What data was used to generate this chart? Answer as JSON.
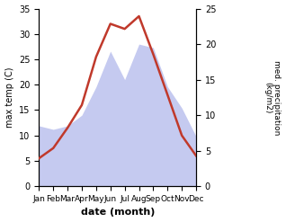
{
  "months": [
    "Jan",
    "Feb",
    "Mar",
    "Apr",
    "May",
    "Jun",
    "Jul",
    "Aug",
    "Sep",
    "Oct",
    "Nov",
    "Dec"
  ],
  "temp": [
    5.5,
    7.5,
    11.5,
    16.0,
    25.5,
    32.0,
    31.0,
    33.5,
    26.0,
    18.0,
    10.0,
    6.0
  ],
  "precip": [
    8.5,
    8.0,
    8.5,
    10.0,
    14.0,
    19.0,
    15.0,
    20.0,
    19.5,
    14.0,
    11.0,
    7.0
  ],
  "temp_color": "#c0392b",
  "precip_fill_color": "#c5caf0",
  "xlabel": "date (month)",
  "ylabel_left": "max temp (C)",
  "ylabel_right": "med. precipitation\n(kg/m2)",
  "ylim_left": [
    0,
    35
  ],
  "ylim_right": [
    0,
    25
  ],
  "yticks_left": [
    0,
    5,
    10,
    15,
    20,
    25,
    30,
    35
  ],
  "yticks_right": [
    0,
    5,
    10,
    15,
    20,
    25
  ],
  "bg_color": "#ffffff"
}
